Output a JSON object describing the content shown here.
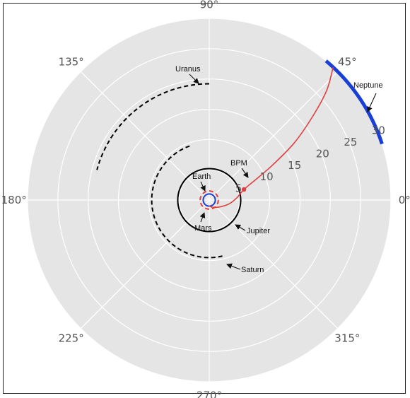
{
  "chart_data": {
    "type": "polar",
    "background_color": "#e5e5e5",
    "grid": true,
    "grid_color": "#ffffff",
    "r_max": 30,
    "radial_ticks": [
      5,
      10,
      15,
      20,
      25,
      30
    ],
    "radial_tick_labels": [
      "5",
      "10",
      "15",
      "20",
      "25",
      "30"
    ],
    "radial_label_angle_deg": 22.5,
    "angle_ticks_deg": [
      0,
      45,
      90,
      135,
      180,
      225,
      270,
      315
    ],
    "angle_tick_labels": [
      "0°",
      "45°",
      "90°",
      "135°",
      "180°",
      "225°",
      "270°",
      "315°"
    ],
    "orbits": [
      {
        "name": "Earth",
        "radius": 1.0,
        "color": "#1a3fd6",
        "style": "solid",
        "arc_deg": [
          0,
          360
        ]
      },
      {
        "name": "Mars",
        "radius": 1.5,
        "color": "#e04040",
        "style": "dashed",
        "arc_deg": [
          0,
          360
        ]
      },
      {
        "name": "Jupiter",
        "radius": 5.2,
        "color": "#000000",
        "style": "solid",
        "arc_deg": [
          0,
          360
        ]
      },
      {
        "name": "Saturn",
        "radius": 9.5,
        "color": "#000000",
        "style": "dashed",
        "arc_deg": [
          110,
          285
        ]
      },
      {
        "name": "Uranus",
        "radius": 19.2,
        "color": "#000000",
        "style": "dashed",
        "arc_deg": [
          90,
          165
        ]
      },
      {
        "name": "Neptune",
        "radius": 30.0,
        "color": "#1a3fd6",
        "style": "thick",
        "arc_deg": [
          18,
          50
        ]
      }
    ],
    "trajectory": {
      "name": "BPM",
      "color": "#e04040",
      "points": [
        {
          "theta": 270,
          "r": 1.0
        },
        {
          "theta": 300,
          "r": 1.4
        },
        {
          "theta": 330,
          "r": 2.2
        },
        {
          "theta": 350,
          "r": 3.4
        },
        {
          "theta": 5,
          "r": 4.6
        },
        {
          "theta": 17,
          "r": 6.0
        },
        {
          "theta": 24,
          "r": 8.5
        },
        {
          "theta": 29,
          "r": 12.0
        },
        {
          "theta": 34,
          "r": 17.0
        },
        {
          "theta": 39,
          "r": 22.0
        },
        {
          "theta": 43,
          "r": 26.5
        },
        {
          "theta": 47,
          "r": 30.0
        }
      ],
      "marker": {
        "theta": 17,
        "r": 6.0
      }
    },
    "annotations": [
      {
        "name": "Uranus",
        "text": "Uranus"
      },
      {
        "name": "Neptune",
        "text": "Neptune"
      },
      {
        "name": "BPM",
        "text": "BPM"
      },
      {
        "name": "Earth",
        "text": "Earth"
      },
      {
        "name": "Mars",
        "text": "Mars"
      },
      {
        "name": "Jupiter",
        "text": "Jupiter"
      },
      {
        "name": "Saturn",
        "text": "Saturn"
      }
    ]
  }
}
